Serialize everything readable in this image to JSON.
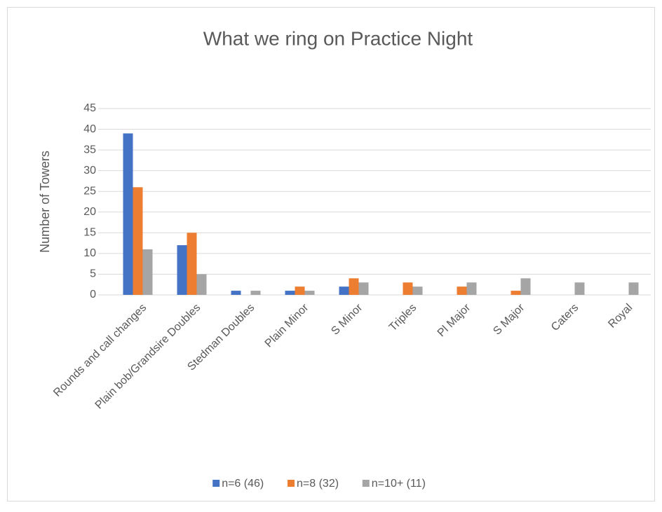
{
  "chart_data": {
    "type": "bar",
    "title": "What we ring on Practice Night",
    "y_label": "Number of Towers",
    "categories": [
      "Rounds and call changes",
      "Plain bob/Grandsire Doubles",
      "Stedman Doubles",
      "Plain Minor",
      "S Minor",
      "Triples",
      "Pl Major",
      "S Major",
      "Caters",
      "Royal"
    ],
    "series": [
      {
        "name": "n=6 (46)",
        "color": "#4472c4",
        "values": [
          39,
          12,
          1,
          1,
          2,
          0,
          0,
          0,
          0,
          0
        ]
      },
      {
        "name": "n=8 (32)",
        "color": "#ed7d31",
        "values": [
          26,
          15,
          0,
          2,
          4,
          3,
          2,
          1,
          0,
          0
        ]
      },
      {
        "name": "n=10+ (11)",
        "color": "#a5a5a5",
        "values": [
          11,
          5,
          1,
          1,
          3,
          2,
          3,
          4,
          3,
          3
        ]
      }
    ],
    "ylim": [
      0,
      45
    ],
    "yticks": [
      0,
      5,
      10,
      15,
      20,
      25,
      30,
      35,
      40,
      45
    ],
    "grid": true,
    "legend": "bottom"
  }
}
